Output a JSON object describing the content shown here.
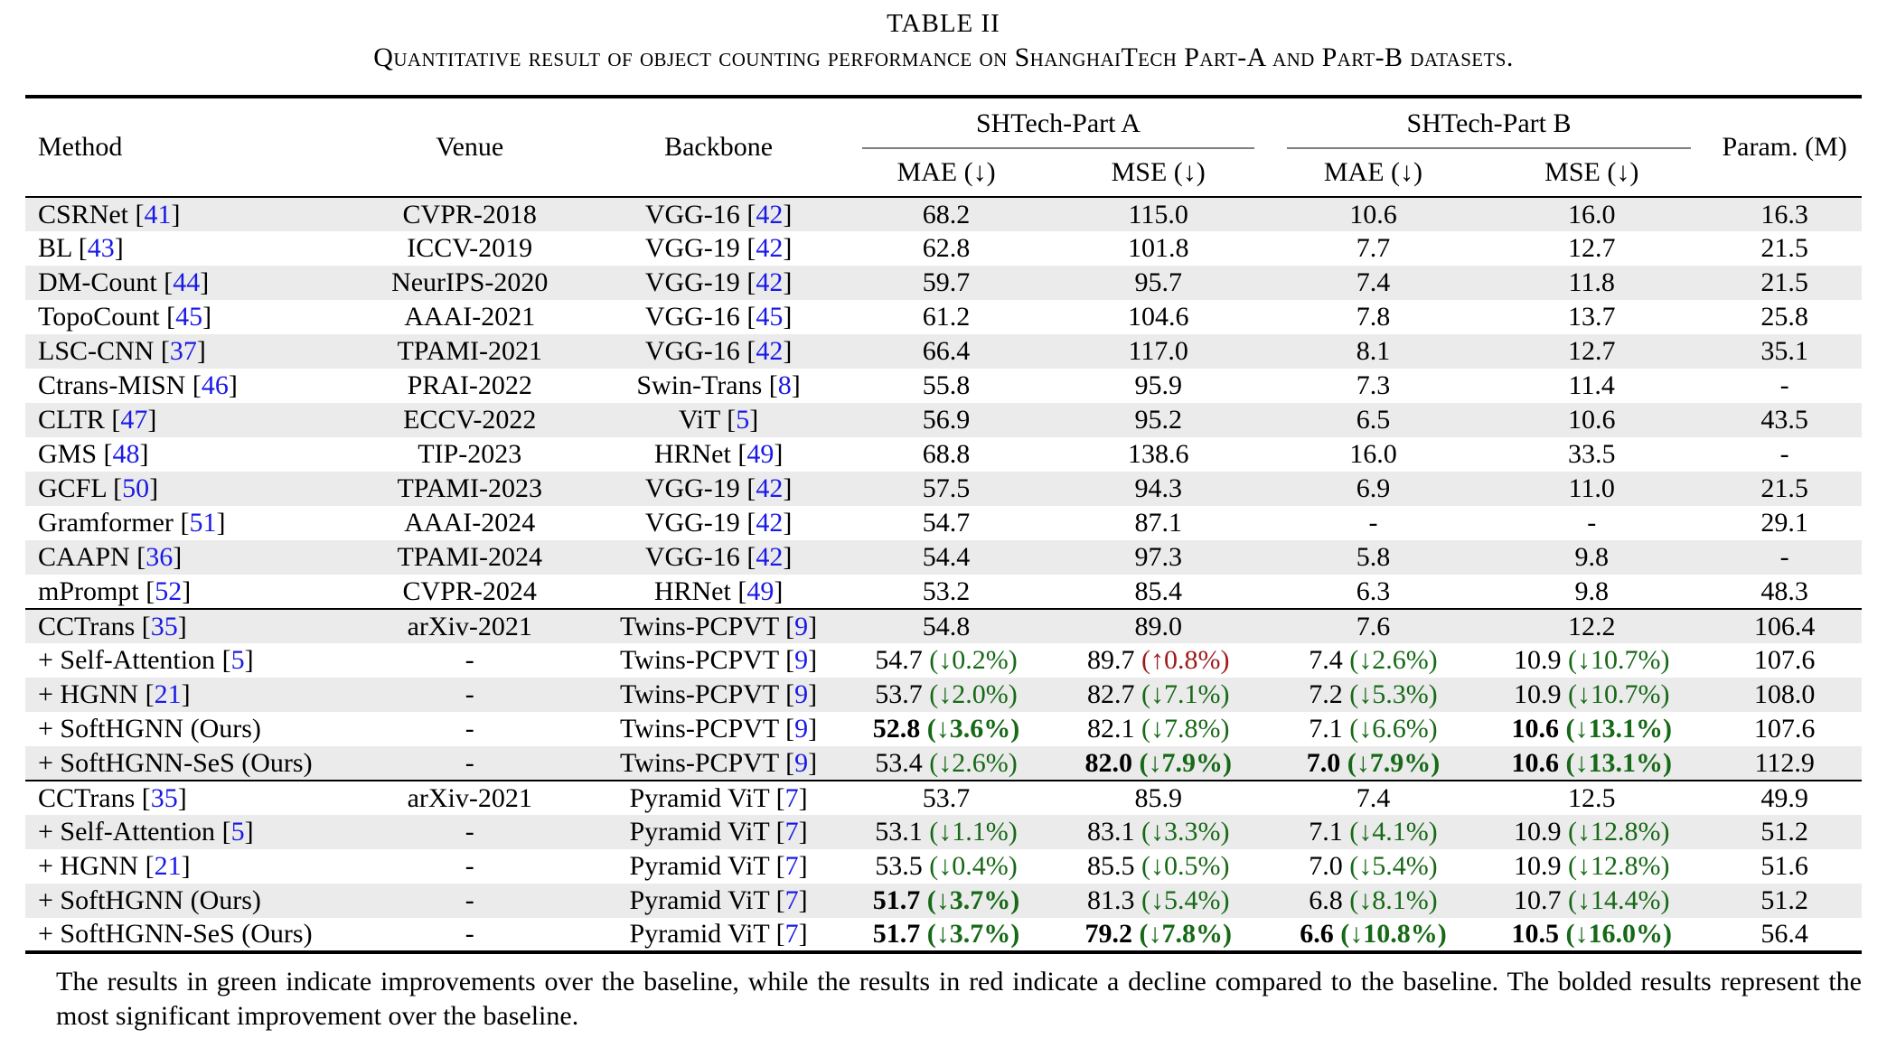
{
  "caption": {
    "title": "TABLE II",
    "subtitle": "Quantitative result of object counting performance on ShanghaiTech Part-A and Part-B datasets."
  },
  "colors": {
    "citation_link": "#1a1ae6",
    "improvement_green": "#166916",
    "decline_red": "#9e1a1a",
    "row_stripe": "#ebebeb"
  },
  "table": {
    "columns": {
      "method": "Method",
      "venue": "Venue",
      "backbone": "Backbone",
      "group_a": "SHTech-Part A",
      "group_b": "SHTech-Part B",
      "mae": "MAE (↓)",
      "mse": "MSE (↓)",
      "param": "Param. (M)"
    },
    "sections": [
      {
        "rows": [
          {
            "m": "CSRNet",
            "mc": "41",
            "vn": "CVPR-2018",
            "bk": "VGG-16",
            "bc": "42",
            "mae_a": {
              "v": "68.2"
            },
            "mse_a": {
              "v": "115.0"
            },
            "mae_b": {
              "v": "10.6"
            },
            "mse_b": {
              "v": "16.0"
            },
            "p": "16.3"
          },
          {
            "m": "BL",
            "mc": "43",
            "vn": "ICCV-2019",
            "bk": "VGG-19",
            "bc": "42",
            "mae_a": {
              "v": "62.8"
            },
            "mse_a": {
              "v": "101.8"
            },
            "mae_b": {
              "v": "7.7"
            },
            "mse_b": {
              "v": "12.7"
            },
            "p": "21.5"
          },
          {
            "m": "DM-Count",
            "mc": "44",
            "vn": "NeurIPS-2020",
            "bk": "VGG-19",
            "bc": "42",
            "mae_a": {
              "v": "59.7"
            },
            "mse_a": {
              "v": "95.7"
            },
            "mae_b": {
              "v": "7.4"
            },
            "mse_b": {
              "v": "11.8"
            },
            "p": "21.5"
          },
          {
            "m": "TopoCount",
            "mc": "45",
            "vn": "AAAI-2021",
            "bk": "VGG-16",
            "bc": "45",
            "mae_a": {
              "v": "61.2"
            },
            "mse_a": {
              "v": "104.6"
            },
            "mae_b": {
              "v": "7.8"
            },
            "mse_b": {
              "v": "13.7"
            },
            "p": "25.8"
          },
          {
            "m": "LSC-CNN",
            "mc": "37",
            "vn": "TPAMI-2021",
            "bk": "VGG-16",
            "bc": "42",
            "mae_a": {
              "v": "66.4"
            },
            "mse_a": {
              "v": "117.0"
            },
            "mae_b": {
              "v": "8.1"
            },
            "mse_b": {
              "v": "12.7"
            },
            "p": "35.1"
          },
          {
            "m": "Ctrans-MISN",
            "mc": "46",
            "vn": "PRAI-2022",
            "bk": "Swin-Trans",
            "bc": "8",
            "mae_a": {
              "v": "55.8"
            },
            "mse_a": {
              "v": "95.9"
            },
            "mae_b": {
              "v": "7.3"
            },
            "mse_b": {
              "v": "11.4"
            },
            "p": "-"
          },
          {
            "m": "CLTR",
            "mc": "47",
            "vn": "ECCV-2022",
            "bk": "ViT",
            "bc": "5",
            "mae_a": {
              "v": "56.9"
            },
            "mse_a": {
              "v": "95.2"
            },
            "mae_b": {
              "v": "6.5"
            },
            "mse_b": {
              "v": "10.6"
            },
            "p": "43.5"
          },
          {
            "m": "GMS",
            "mc": "48",
            "vn": "TIP-2023",
            "bk": "HRNet",
            "bc": "49",
            "mae_a": {
              "v": "68.8"
            },
            "mse_a": {
              "v": "138.6"
            },
            "mae_b": {
              "v": "16.0"
            },
            "mse_b": {
              "v": "33.5"
            },
            "p": "-"
          },
          {
            "m": "GCFL",
            "mc": "50",
            "vn": "TPAMI-2023",
            "bk": "VGG-19",
            "bc": "42",
            "mae_a": {
              "v": "57.5"
            },
            "mse_a": {
              "v": "94.3"
            },
            "mae_b": {
              "v": "6.9"
            },
            "mse_b": {
              "v": "11.0"
            },
            "p": "21.5"
          },
          {
            "m": "Gramformer",
            "mc": "51",
            "vn": "AAAI-2024",
            "bk": "VGG-19",
            "bc": "42",
            "mae_a": {
              "v": "54.7"
            },
            "mse_a": {
              "v": "87.1"
            },
            "mae_b": {
              "v": "-"
            },
            "mse_b": {
              "v": "-"
            },
            "p": "29.1"
          },
          {
            "m": "CAAPN",
            "mc": "36",
            "vn": "TPAMI-2024",
            "bk": "VGG-16",
            "bc": "42",
            "mae_a": {
              "v": "54.4"
            },
            "mse_a": {
              "v": "97.3"
            },
            "mae_b": {
              "v": "5.8"
            },
            "mse_b": {
              "v": "9.8"
            },
            "p": "-"
          },
          {
            "m": "mPrompt",
            "mc": "52",
            "vn": "CVPR-2024",
            "bk": "HRNet",
            "bc": "49",
            "mae_a": {
              "v": "53.2"
            },
            "mse_a": {
              "v": "85.4"
            },
            "mae_b": {
              "v": "6.3"
            },
            "mse_b": {
              "v": "9.8"
            },
            "p": "48.3"
          }
        ]
      },
      {
        "rows": [
          {
            "m": "CCTrans",
            "mc": "35",
            "vn": "arXiv-2021",
            "bk": "Twins-PCPVT",
            "bc": "9",
            "mae_a": {
              "v": "54.8"
            },
            "mse_a": {
              "v": "89.0"
            },
            "mae_b": {
              "v": "7.6"
            },
            "mse_b": {
              "v": "12.2"
            },
            "p": "106.4"
          },
          {
            "m": "+ Self-Attention",
            "mc": "5",
            "vn": "-",
            "bk": "Twins-PCPVT",
            "bc": "9",
            "mae_a": {
              "v": "54.7",
              "d": "↓0.2%",
              "c": "green"
            },
            "mse_a": {
              "v": "89.7",
              "d": "↑0.8%",
              "c": "red"
            },
            "mae_b": {
              "v": "7.4",
              "d": "↓2.6%",
              "c": "green"
            },
            "mse_b": {
              "v": "10.9",
              "d": "↓10.7%",
              "c": "green"
            },
            "p": "107.6"
          },
          {
            "m": "+ HGNN",
            "mc": "21",
            "vn": "-",
            "bk": "Twins-PCPVT",
            "bc": "9",
            "mae_a": {
              "v": "53.7",
              "d": "↓2.0%",
              "c": "green"
            },
            "mse_a": {
              "v": "82.7",
              "d": "↓7.1%",
              "c": "green"
            },
            "mae_b": {
              "v": "7.2",
              "d": "↓5.3%",
              "c": "green"
            },
            "mse_b": {
              "v": "10.9",
              "d": "↓10.7%",
              "c": "green"
            },
            "p": "108.0"
          },
          {
            "m": "+ SoftHGNN (Ours)",
            "vn": "-",
            "bk": "Twins-PCPVT",
            "bc": "9",
            "mae_a": {
              "v": "52.8",
              "d": "↓3.6%",
              "c": "green",
              "b": true
            },
            "mse_a": {
              "v": "82.1",
              "d": "↓7.8%",
              "c": "green"
            },
            "mae_b": {
              "v": "7.1",
              "d": "↓6.6%",
              "c": "green"
            },
            "mse_b": {
              "v": "10.6",
              "d": "↓13.1%",
              "c": "green",
              "b": true
            },
            "p": "107.6"
          },
          {
            "m": "+ SoftHGNN-SeS (Ours)",
            "vn": "-",
            "bk": "Twins-PCPVT",
            "bc": "9",
            "mae_a": {
              "v": "53.4",
              "d": "↓2.6%",
              "c": "green"
            },
            "mse_a": {
              "v": "82.0",
              "d": "↓7.9%",
              "c": "green",
              "b": true
            },
            "mae_b": {
              "v": "7.0",
              "d": "↓7.9%",
              "c": "green",
              "b": true
            },
            "mse_b": {
              "v": "10.6",
              "d": "↓13.1%",
              "c": "green",
              "b": true
            },
            "p": "112.9"
          }
        ]
      },
      {
        "rows": [
          {
            "m": "CCTrans",
            "mc": "35",
            "vn": "arXiv-2021",
            "bk": "Pyramid ViT",
            "bc": "7",
            "mae_a": {
              "v": "53.7"
            },
            "mse_a": {
              "v": "85.9"
            },
            "mae_b": {
              "v": "7.4"
            },
            "mse_b": {
              "v": "12.5"
            },
            "p": "49.9"
          },
          {
            "m": "+ Self-Attention",
            "mc": "5",
            "vn": "-",
            "bk": "Pyramid ViT",
            "bc": "7",
            "mae_a": {
              "v": "53.1",
              "d": "↓1.1%",
              "c": "green"
            },
            "mse_a": {
              "v": "83.1",
              "d": "↓3.3%",
              "c": "green"
            },
            "mae_b": {
              "v": "7.1",
              "d": "↓4.1%",
              "c": "green"
            },
            "mse_b": {
              "v": "10.9",
              "d": "↓12.8%",
              "c": "green"
            },
            "p": "51.2"
          },
          {
            "m": "+ HGNN",
            "mc": "21",
            "vn": "-",
            "bk": "Pyramid ViT",
            "bc": "7",
            "mae_a": {
              "v": "53.5",
              "d": "↓0.4%",
              "c": "green"
            },
            "mse_a": {
              "v": "85.5",
              "d": "↓0.5%",
              "c": "green"
            },
            "mae_b": {
              "v": "7.0",
              "d": "↓5.4%",
              "c": "green"
            },
            "mse_b": {
              "v": "10.9",
              "d": "↓12.8%",
              "c": "green"
            },
            "p": "51.6"
          },
          {
            "m": "+ SoftHGNN (Ours)",
            "vn": "-",
            "bk": "Pyramid ViT",
            "bc": "7",
            "mae_a": {
              "v": "51.7",
              "d": "↓3.7%",
              "c": "green",
              "b": true
            },
            "mse_a": {
              "v": "81.3",
              "d": "↓5.4%",
              "c": "green"
            },
            "mae_b": {
              "v": "6.8",
              "d": "↓8.1%",
              "c": "green"
            },
            "mse_b": {
              "v": "10.7",
              "d": "↓14.4%",
              "c": "green"
            },
            "p": "51.2"
          },
          {
            "m": "+ SoftHGNN-SeS (Ours)",
            "vn": "-",
            "bk": "Pyramid ViT",
            "bc": "7",
            "mae_a": {
              "v": "51.7",
              "d": "↓3.7%",
              "c": "green",
              "b": true
            },
            "mse_a": {
              "v": "79.2",
              "d": "↓7.8%",
              "c": "green",
              "b": true
            },
            "mae_b": {
              "v": "6.6",
              "d": "↓10.8%",
              "c": "green",
              "b": true
            },
            "mse_b": {
              "v": "10.5",
              "d": "↓16.0%",
              "c": "green",
              "b": true
            },
            "p": "56.4"
          }
        ]
      }
    ]
  },
  "footnote": "The results in green indicate improvements over the baseline, while the results in red indicate a decline compared to the baseline. The bolded results represent the most significant improvement over the baseline."
}
